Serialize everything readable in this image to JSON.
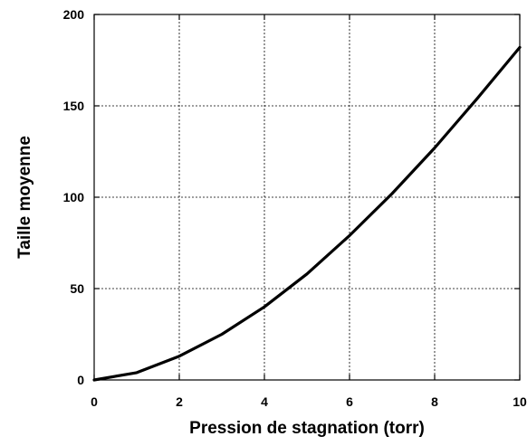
{
  "chart_data": {
    "type": "line",
    "title": "",
    "xlabel": "Pression de stagnation (torr)",
    "ylabel": "Taille moyenne",
    "xlim": [
      0,
      10
    ],
    "ylim": [
      0,
      200
    ],
    "x_ticks": [
      "0",
      "2",
      "4",
      "6",
      "8",
      "10"
    ],
    "y_ticks": [
      "0",
      "50",
      "100",
      "150",
      "200"
    ],
    "grid": true,
    "legend": "none",
    "series": [
      {
        "color": "#000000",
        "x": [
          0,
          1,
          2,
          3,
          4,
          5,
          6,
          7,
          8,
          9,
          10
        ],
        "y": [
          0,
          4,
          13,
          25,
          40,
          58,
          79,
          102,
          127,
          154,
          182
        ]
      }
    ]
  }
}
